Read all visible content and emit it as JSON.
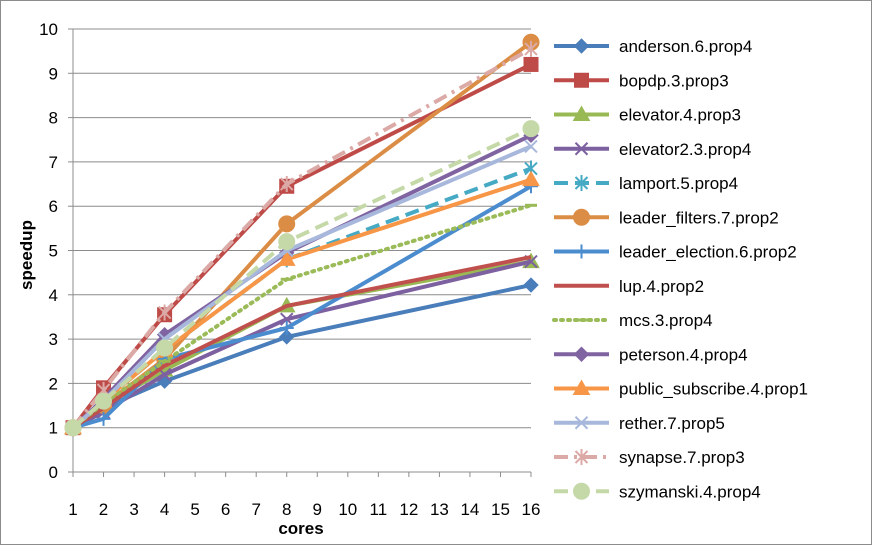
{
  "chart_data": {
    "type": "line",
    "title": "",
    "xlabel": "cores",
    "ylabel": "speedup",
    "x_ticks": [
      1,
      2,
      3,
      4,
      5,
      6,
      7,
      8,
      9,
      10,
      11,
      12,
      13,
      14,
      15,
      16
    ],
    "y_ticks": [
      0,
      1,
      2,
      3,
      4,
      5,
      6,
      7,
      8,
      9,
      10
    ],
    "xlim": [
      1,
      16
    ],
    "ylim": [
      0,
      10
    ],
    "grid": "horizontal",
    "legend_position": "right",
    "x": [
      1,
      2,
      4,
      8,
      16
    ],
    "series": [
      {
        "name": "anderson.6.prop4",
        "values": [
          1,
          1.45,
          2.05,
          3.05,
          4.22
        ],
        "color": "#4a7ebb",
        "marker": "diamond",
        "dash": "solid"
      },
      {
        "name": "bopdp.3.prop3",
        "values": [
          1,
          1.9,
          3.55,
          6.45,
          9.2
        ],
        "color": "#be4b48",
        "marker": "square",
        "dash": "solid"
      },
      {
        "name": "elevator.4.prop3",
        "values": [
          1,
          1.5,
          2.3,
          3.75,
          4.75
        ],
        "color": "#98b954",
        "marker": "triangle",
        "dash": "solid"
      },
      {
        "name": "elevator2.3.prop4",
        "values": [
          1,
          1.35,
          2.2,
          3.45,
          4.75
        ],
        "color": "#7d60a0",
        "marker": "x",
        "dash": "solid"
      },
      {
        "name": "lamport.5.prop4",
        "values": [
          1,
          1.6,
          2.75,
          4.8,
          6.85
        ],
        "color": "#46aac5",
        "marker": "asterisk",
        "dash": "dash"
      },
      {
        "name": "leader_filters.7.prop2",
        "values": [
          1,
          1.5,
          2.55,
          5.6,
          9.7
        ],
        "color": "#db8d45",
        "marker": "circle",
        "dash": "solid"
      },
      {
        "name": "leader_election.6.prop2",
        "values": [
          1,
          1.2,
          2.55,
          3.25,
          6.45
        ],
        "color": "#4b8ccf",
        "marker": "plus",
        "dash": "solid"
      },
      {
        "name": "lup.4.prop2",
        "values": [
          1,
          1.45,
          2.4,
          3.75,
          4.85
        ],
        "color": "#c0504d",
        "marker": "none",
        "dash": "solid"
      },
      {
        "name": "mcs.3.prop4",
        "values": [
          1,
          1.55,
          2.5,
          4.35,
          6.02
        ],
        "color": "#9bbb59",
        "marker": "dash",
        "dash": "dot"
      },
      {
        "name": "peterson.4.prop4",
        "values": [
          1,
          1.65,
          3.1,
          4.95,
          7.6
        ],
        "color": "#8064a2",
        "marker": "diamond",
        "dash": "solid"
      },
      {
        "name": "public_subscribe.4.prop1",
        "values": [
          1,
          1.6,
          2.75,
          4.8,
          6.6
        ],
        "color": "#f79646",
        "marker": "triangle",
        "dash": "solid"
      },
      {
        "name": "rether.7.prop5",
        "values": [
          1,
          1.6,
          3.0,
          5.0,
          7.35
        ],
        "color": "#a8b8dc",
        "marker": "x",
        "dash": "solid"
      },
      {
        "name": "synapse.7.prop3",
        "values": [
          1,
          1.85,
          3.6,
          6.5,
          9.55
        ],
        "color": "#dcaaa6",
        "marker": "asterisk",
        "dash": "dashdot"
      },
      {
        "name": "szymanski.4.prop4",
        "values": [
          1,
          1.6,
          2.8,
          5.2,
          7.75
        ],
        "color": "#c5d9a8",
        "marker": "circle",
        "dash": "dash"
      }
    ]
  }
}
